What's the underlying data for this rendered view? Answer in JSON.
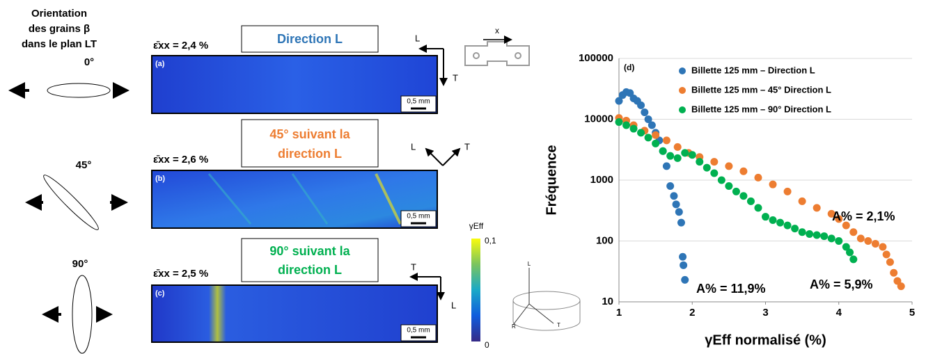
{
  "left_panel": {
    "orientation_title": [
      "Orientation",
      "des grains β",
      "dans le plan LT"
    ],
    "angles": [
      "0°",
      "45°",
      "90°"
    ],
    "strains": [
      "ε̄xx = 2,4 %",
      "ε̄xx = 2,6 %",
      "ε̄xx = 2,5 %"
    ],
    "directions": [
      [
        "Direction L"
      ],
      [
        "45° suivant la",
        "direction L"
      ],
      [
        "90° suivant la",
        "direction L"
      ]
    ],
    "panel_labels": [
      "(a)",
      "(b)",
      "(c)"
    ],
    "scale_bar": "0,5 mm",
    "axis_L": "L",
    "axis_T": "T",
    "axis_R": "R",
    "specimen_x": "x",
    "colorbar": {
      "label": "γEff",
      "max": "0,1",
      "min": "0"
    }
  },
  "chart_data": {
    "type": "scatter",
    "panel_label": "(d)",
    "xlabel": "γEff normalisé (%)",
    "ylabel": "Fréquence",
    "xlim": [
      1,
      5
    ],
    "xticks": [
      1,
      2,
      3,
      4,
      5
    ],
    "ylim": [
      10,
      100000
    ],
    "yticks": [
      10,
      100,
      1000,
      10000,
      100000
    ],
    "log_y": true,
    "grid": true,
    "legend": "top-left",
    "annotations": [
      "A% = 11,9%",
      "A% = 5,9%",
      "A% = 2,1%"
    ],
    "series": [
      {
        "name": "Billette 125 mm – Direction L",
        "color": "#2e75b6",
        "x": [
          1.0,
          1.05,
          1.1,
          1.15,
          1.2,
          1.25,
          1.3,
          1.35,
          1.4,
          1.45,
          1.5,
          1.55,
          1.6,
          1.65,
          1.7,
          1.75,
          1.78,
          1.82,
          1.85,
          1.87,
          1.88,
          1.9
        ],
        "values": [
          20000,
          25000,
          28000,
          27000,
          22000,
          20000,
          17000,
          13000,
          10000,
          8000,
          6000,
          4500,
          3000,
          1700,
          800,
          550,
          400,
          300,
          200,
          55,
          40,
          23
        ]
      },
      {
        "name": "Billette 125 mm – 45° Direction L",
        "color": "#ed7d31",
        "x": [
          1.0,
          1.1,
          1.2,
          1.35,
          1.5,
          1.65,
          1.8,
          1.95,
          2.1,
          2.3,
          2.5,
          2.7,
          2.9,
          3.1,
          3.3,
          3.5,
          3.7,
          3.9,
          4.0,
          4.1,
          4.2,
          4.3,
          4.4,
          4.5,
          4.6,
          4.65,
          4.7,
          4.75,
          4.8,
          4.85
        ],
        "values": [
          10500,
          9500,
          8000,
          6500,
          5500,
          4500,
          3500,
          2800,
          2400,
          2000,
          1700,
          1400,
          1100,
          850,
          650,
          450,
          350,
          280,
          230,
          180,
          140,
          110,
          100,
          90,
          80,
          60,
          45,
          30,
          22,
          18
        ]
      },
      {
        "name": "Billette 125 mm – 90° Direction L",
        "color": "#00b050",
        "x": [
          1.0,
          1.1,
          1.2,
          1.3,
          1.4,
          1.5,
          1.6,
          1.7,
          1.8,
          1.9,
          2.0,
          2.1,
          2.2,
          2.3,
          2.4,
          2.5,
          2.6,
          2.7,
          2.8,
          2.9,
          3.0,
          3.1,
          3.2,
          3.3,
          3.4,
          3.5,
          3.6,
          3.7,
          3.8,
          3.9,
          4.0,
          4.1,
          4.15,
          4.2
        ],
        "values": [
          9000,
          8000,
          7000,
          6000,
          5000,
          4000,
          3000,
          2500,
          2300,
          2800,
          2600,
          2000,
          1600,
          1300,
          1000,
          800,
          650,
          550,
          450,
          350,
          250,
          220,
          200,
          180,
          160,
          140,
          130,
          125,
          120,
          110,
          100,
          80,
          65,
          50
        ]
      }
    ]
  }
}
